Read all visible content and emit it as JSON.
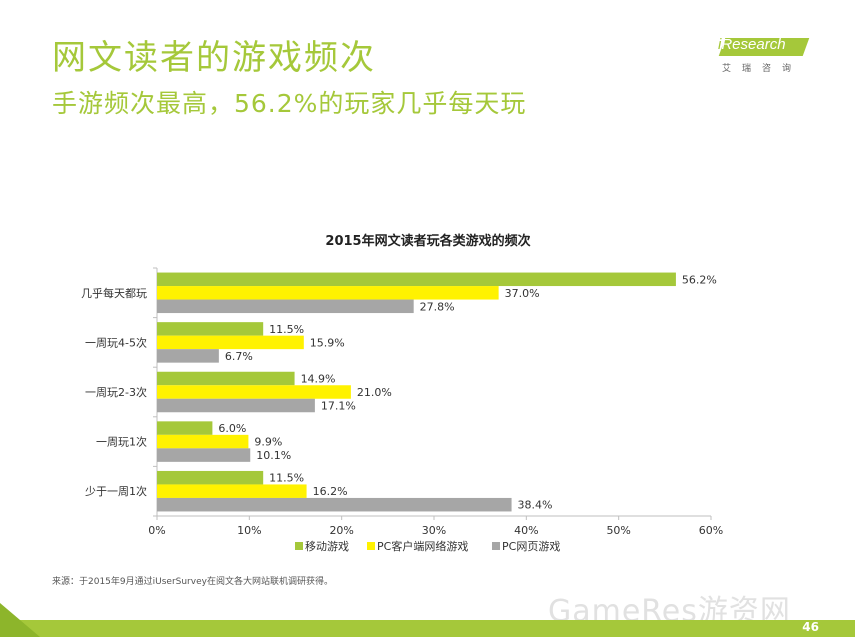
{
  "header": {
    "title": "网文读者的游戏频次",
    "subtitle": "手游频次最高，56.2%的玩家几乎每天玩"
  },
  "logo": {
    "i": "i",
    "name": "Research",
    "cn": "艾瑞咨询"
  },
  "chart_data": {
    "type": "bar",
    "orientation": "horizontal",
    "title": "2015年网文读者玩各类游戏的频次",
    "categories": [
      "几乎每天都玩",
      "一周玩4-5次",
      "一周玩2-3次",
      "一周玩1次",
      "少于一周1次"
    ],
    "series": [
      {
        "name": "移动游戏",
        "color": "#a5c83a",
        "values": [
          56.2,
          11.5,
          14.9,
          6.0,
          11.5
        ],
        "labels": [
          "56.2%",
          "11.5%",
          "14.9%",
          "6.0%",
          "11.5%"
        ]
      },
      {
        "name": "PC客户端网络游戏",
        "color": "#fff200",
        "values": [
          37.0,
          15.9,
          21.0,
          9.9,
          16.2
        ],
        "labels": [
          "37.0%",
          "15.9%",
          "21.0%",
          "9.9%",
          "16.2%"
        ]
      },
      {
        "name": "PC网页游戏",
        "color": "#a6a6a6",
        "values": [
          27.8,
          6.7,
          17.1,
          10.1,
          38.4
        ],
        "labels": [
          "27.8%",
          "6.7%",
          "17.1%",
          "10.1%",
          "38.4%"
        ]
      }
    ],
    "xlim": [
      0,
      60
    ],
    "xticks": [
      0,
      10,
      20,
      30,
      40,
      50,
      60
    ],
    "xtick_labels": [
      "0%",
      "10%",
      "20%",
      "30%",
      "40%",
      "50%",
      "60%"
    ],
    "legend_position": "bottom"
  },
  "footer": {
    "source": "来源：于2015年9月通过iUserSurvey在阅文各大网站联机调研获得。",
    "watermark": "GameRes游资网",
    "page": "46"
  }
}
